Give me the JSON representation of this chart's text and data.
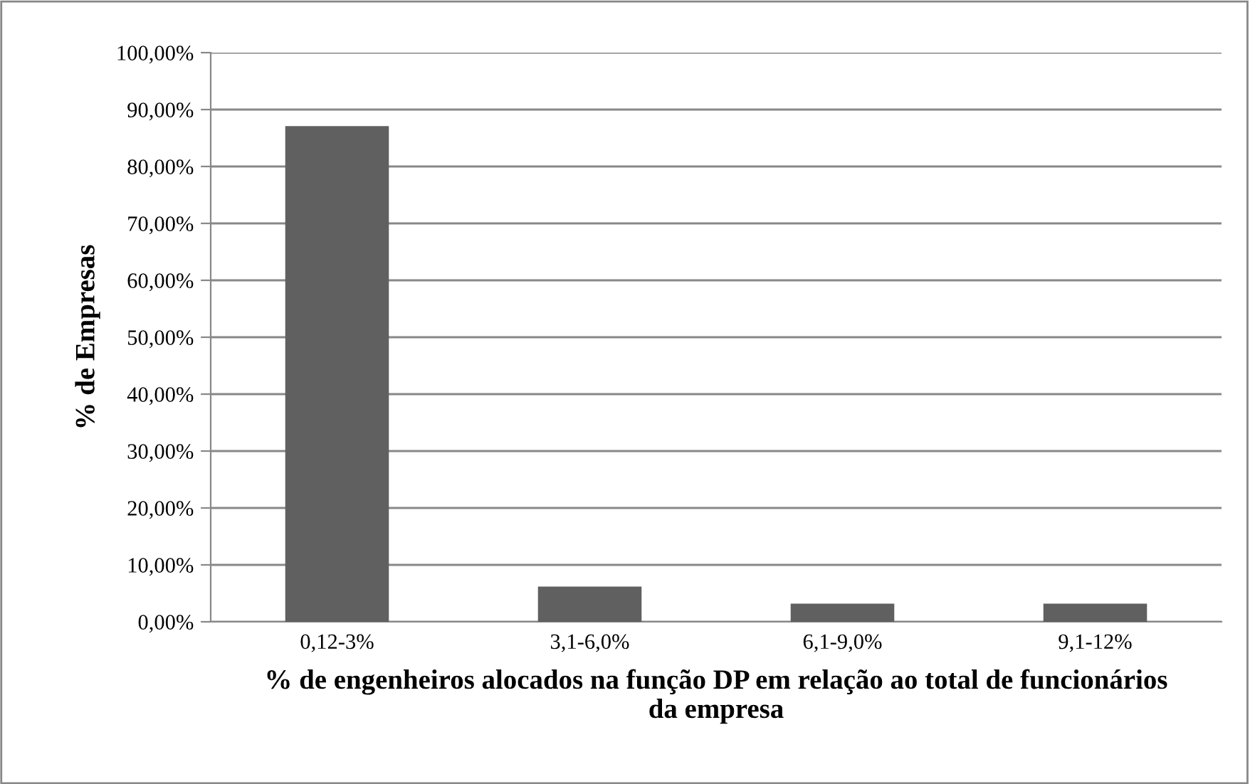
{
  "chart_data": {
    "type": "bar",
    "xlabel": "% de engenheiros alocados na função DP em relação ao total de funcionários da empresa",
    "ylabel": "% de Empresas",
    "categories": [
      "0,12-3%",
      "3,1-6,0%",
      "6,1-9,0%",
      "9,1-12%"
    ],
    "values": [
      87.1,
      6.2,
      3.2,
      3.2
    ],
    "color": "#606060",
    "ylim": [
      0,
      100
    ],
    "yticks": [
      {
        "value": 0,
        "label": "0,00%"
      },
      {
        "value": 10,
        "label": "10,00%"
      },
      {
        "value": 20,
        "label": "20,00%"
      },
      {
        "value": 30,
        "label": "30,00%"
      },
      {
        "value": 40,
        "label": "40,00%"
      },
      {
        "value": 50,
        "label": "50,00%"
      },
      {
        "value": 60,
        "label": "60,00%"
      },
      {
        "value": 70,
        "label": "70,00%"
      },
      {
        "value": 80,
        "label": "80,00%"
      },
      {
        "value": 90,
        "label": "90,00%"
      },
      {
        "value": 100,
        "label": "100,00%"
      }
    ],
    "grid": "y",
    "legend": false
  }
}
